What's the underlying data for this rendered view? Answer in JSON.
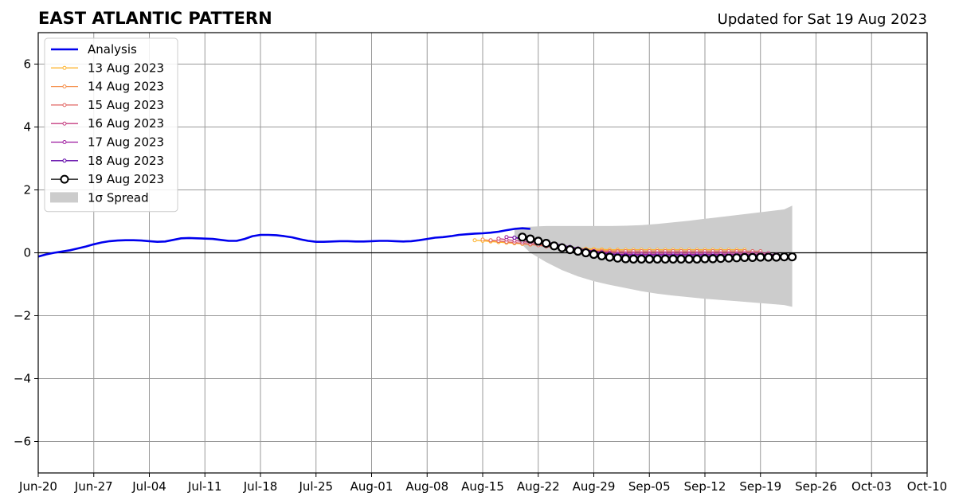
{
  "chart_data": {
    "type": "line",
    "title": "EAST ATLANTIC PATTERN",
    "subtitle": "Updated for Sat 19 Aug 2023",
    "xlabel": "",
    "ylabel": "",
    "x_tick_labels": [
      "Jun-20",
      "Jun-27",
      "Jul-04",
      "Jul-11",
      "Jul-18",
      "Jul-25",
      "Aug-01",
      "Aug-08",
      "Aug-15",
      "Aug-22",
      "Aug-29",
      "Sep-05",
      "Sep-12",
      "Sep-19",
      "Sep-26",
      "Oct-03",
      "Oct-10"
    ],
    "y_ticks": [
      -6,
      -4,
      -2,
      0,
      2,
      4,
      6
    ],
    "y_tick_labels": [
      "−6",
      "−4",
      "−2",
      "0",
      "2",
      "4",
      "6"
    ],
    "ylim": [
      -7,
      7
    ],
    "x_range_days": [
      0,
      112
    ],
    "grid": true,
    "legend_position": "upper-left",
    "analysis": {
      "name": "Analysis",
      "color": "#0000ee",
      "points": [
        [
          0,
          -0.12
        ],
        [
          1,
          -0.05
        ],
        [
          2,
          0.0
        ],
        [
          3,
          0.04
        ],
        [
          4,
          0.08
        ],
        [
          5,
          0.14
        ],
        [
          6,
          0.2
        ],
        [
          7,
          0.27
        ],
        [
          8,
          0.33
        ],
        [
          9,
          0.37
        ],
        [
          10,
          0.39
        ],
        [
          11,
          0.4
        ],
        [
          12,
          0.4
        ],
        [
          13,
          0.39
        ],
        [
          14,
          0.37
        ],
        [
          15,
          0.35
        ],
        [
          16,
          0.36
        ],
        [
          17,
          0.41
        ],
        [
          18,
          0.46
        ],
        [
          19,
          0.47
        ],
        [
          20,
          0.46
        ],
        [
          21,
          0.45
        ],
        [
          22,
          0.44
        ],
        [
          23,
          0.41
        ],
        [
          24,
          0.38
        ],
        [
          25,
          0.38
        ],
        [
          26,
          0.44
        ],
        [
          27,
          0.53
        ],
        [
          28,
          0.57
        ],
        [
          29,
          0.57
        ],
        [
          30,
          0.56
        ],
        [
          31,
          0.53
        ],
        [
          32,
          0.49
        ],
        [
          33,
          0.43
        ],
        [
          34,
          0.38
        ],
        [
          35,
          0.35
        ],
        [
          36,
          0.35
        ],
        [
          37,
          0.36
        ],
        [
          38,
          0.37
        ],
        [
          39,
          0.37
        ],
        [
          40,
          0.36
        ],
        [
          41,
          0.36
        ],
        [
          42,
          0.37
        ],
        [
          43,
          0.38
        ],
        [
          44,
          0.38
        ],
        [
          45,
          0.37
        ],
        [
          46,
          0.36
        ],
        [
          47,
          0.37
        ],
        [
          48,
          0.4
        ],
        [
          49,
          0.44
        ],
        [
          50,
          0.48
        ],
        [
          51,
          0.5
        ],
        [
          52,
          0.53
        ],
        [
          53,
          0.57
        ],
        [
          54,
          0.59
        ],
        [
          55,
          0.61
        ],
        [
          56,
          0.62
        ],
        [
          57,
          0.64
        ],
        [
          58,
          0.67
        ],
        [
          59,
          0.72
        ],
        [
          60,
          0.76
        ],
        [
          61,
          0.78
        ],
        [
          62,
          0.76
        ]
      ]
    },
    "forecasts": [
      {
        "name": "13 Aug 2023",
        "color": "#fdb42f",
        "start": 55,
        "values": [
          0.4,
          0.38,
          0.36,
          0.34,
          0.32,
          0.3,
          0.28,
          0.26,
          0.24,
          0.22,
          0.2,
          0.18,
          0.16,
          0.14,
          0.13,
          0.12,
          0.11,
          0.1,
          0.1,
          0.1,
          0.1,
          0.1,
          0.1,
          0.1,
          0.1,
          0.1,
          0.1,
          0.1,
          0.1,
          0.1,
          0.1,
          0.1,
          0.1,
          0.1,
          0.1
        ]
      },
      {
        "name": "14 Aug 2023",
        "color": "#f58c46",
        "start": 56,
        "values": [
          0.42,
          0.39,
          0.37,
          0.35,
          0.32,
          0.3,
          0.27,
          0.25,
          0.22,
          0.2,
          0.17,
          0.14,
          0.12,
          0.1,
          0.08,
          0.07,
          0.06,
          0.06,
          0.05,
          0.05,
          0.05,
          0.05,
          0.05,
          0.05,
          0.05,
          0.05,
          0.05,
          0.05,
          0.05,
          0.05,
          0.05,
          0.05,
          0.05,
          0.05,
          0.05
        ]
      },
      {
        "name": "15 Aug 2023",
        "color": "#e16462",
        "start": 57,
        "values": [
          0.4,
          0.38,
          0.35,
          0.33,
          0.3,
          0.27,
          0.24,
          0.2,
          0.17,
          0.14,
          0.11,
          0.08,
          0.06,
          0.05,
          0.04,
          0.04,
          0.04,
          0.05,
          0.05,
          0.05,
          0.05,
          0.05,
          0.05,
          0.05,
          0.05,
          0.05,
          0.05,
          0.05,
          0.05,
          0.05,
          0.05,
          0.05,
          0.05,
          0.05,
          0.05
        ]
      },
      {
        "name": "16 Aug 2023",
        "color": "#c43e80",
        "start": 58,
        "values": [
          0.45,
          0.42,
          0.39,
          0.36,
          0.33,
          0.29,
          0.25,
          0.21,
          0.17,
          0.13,
          0.09,
          0.06,
          0.03,
          0.01,
          0.0,
          -0.01,
          -0.01,
          -0.01,
          -0.01,
          -0.01,
          -0.01,
          -0.01,
          -0.01,
          -0.01,
          -0.01,
          -0.01,
          -0.01,
          -0.01,
          -0.01,
          -0.01,
          -0.01,
          -0.01,
          -0.01,
          -0.01,
          -0.01
        ]
      },
      {
        "name": "17 Aug 2023",
        "color": "#9c179e",
        "start": 59,
        "values": [
          0.5,
          0.48,
          0.44,
          0.4,
          0.36,
          0.31,
          0.26,
          0.21,
          0.16,
          0.11,
          0.06,
          0.02,
          -0.02,
          -0.04,
          -0.05,
          -0.05,
          -0.05,
          -0.05,
          -0.05,
          -0.05,
          -0.05,
          -0.05,
          -0.05,
          -0.05,
          -0.05,
          -0.05,
          -0.05,
          -0.05,
          -0.05,
          -0.05,
          -0.05,
          -0.05,
          -0.05,
          -0.05,
          -0.05
        ]
      },
      {
        "name": "18 Aug 2023",
        "color": "#5c01a6",
        "start": 60,
        "values": [
          0.48,
          0.46,
          0.43,
          0.39,
          0.34,
          0.29,
          0.24,
          0.19,
          0.14,
          0.09,
          0.05,
          0.01,
          -0.03,
          -0.06,
          -0.08,
          -0.09,
          -0.09,
          -0.09,
          -0.09,
          -0.09,
          -0.09,
          -0.09,
          -0.09,
          -0.09,
          -0.09,
          -0.09,
          -0.09,
          -0.09,
          -0.09,
          -0.09,
          -0.09,
          -0.09,
          -0.09,
          -0.09,
          -0.09
        ]
      },
      {
        "name": "19 Aug 2023",
        "color": "#000000",
        "start": 61,
        "values": [
          0.5,
          0.44,
          0.37,
          0.3,
          0.22,
          0.16,
          0.1,
          0.05,
          0.0,
          -0.05,
          -0.1,
          -0.14,
          -0.17,
          -0.19,
          -0.2,
          -0.2,
          -0.2,
          -0.2,
          -0.2,
          -0.2,
          -0.2,
          -0.2,
          -0.2,
          -0.19,
          -0.19,
          -0.18,
          -0.17,
          -0.16,
          -0.15,
          -0.15,
          -0.14,
          -0.14,
          -0.14,
          -0.13,
          -0.13
        ]
      }
    ],
    "spread": {
      "name": "1σ Spread",
      "color": "#cccccc",
      "points": [
        [
          60,
          0.8,
          0.5
        ],
        [
          61,
          0.82,
          0.25
        ],
        [
          62,
          0.83,
          0.0
        ],
        [
          63,
          0.84,
          -0.15
        ],
        [
          64,
          0.85,
          -0.3
        ],
        [
          66,
          0.85,
          -0.55
        ],
        [
          68,
          0.85,
          -0.75
        ],
        [
          70,
          0.85,
          -0.9
        ],
        [
          72,
          0.85,
          -1.02
        ],
        [
          74,
          0.86,
          -1.12
        ],
        [
          76,
          0.88,
          -1.22
        ],
        [
          78,
          0.92,
          -1.3
        ],
        [
          80,
          0.97,
          -1.36
        ],
        [
          82,
          1.02,
          -1.41
        ],
        [
          84,
          1.08,
          -1.46
        ],
        [
          86,
          1.14,
          -1.5
        ],
        [
          88,
          1.2,
          -1.54
        ],
        [
          90,
          1.26,
          -1.58
        ],
        [
          92,
          1.32,
          -1.62
        ],
        [
          94,
          1.38,
          -1.66
        ],
        [
          95,
          1.5,
          -1.72
        ]
      ]
    }
  }
}
